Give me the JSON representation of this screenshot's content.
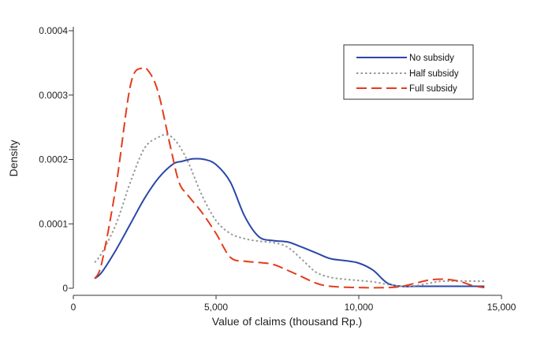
{
  "chart_data": {
    "type": "line",
    "title": "",
    "xlabel": "Value of claims (thousand Rp.)",
    "ylabel": "Density",
    "xlim": [
      0,
      15000
    ],
    "ylim": [
      0,
      0.0004
    ],
    "x_ticks": [
      0,
      5000,
      10000,
      15000
    ],
    "x_tick_labels": [
      "0",
      "5,000",
      "10,000",
      "15,000"
    ],
    "y_ticks": [
      0,
      0.0001,
      0.0002,
      0.0003,
      0.0004
    ],
    "y_tick_labels": [
      "0",
      "0.0001",
      "0.0002",
      "0.0003",
      "0.0004"
    ],
    "grid": false,
    "legend_position": "top-right",
    "series": [
      {
        "name": "No subsidy",
        "color": "#2a47a8",
        "style": "solid",
        "points": [
          [
            750,
            1.5e-05
          ],
          [
            1000,
            2.5e-05
          ],
          [
            1500,
            6e-05
          ],
          [
            2000,
            0.0001
          ],
          [
            2500,
            0.00014
          ],
          [
            3000,
            0.000172
          ],
          [
            3500,
            0.000193
          ],
          [
            3800,
            0.000197
          ],
          [
            4200,
            0.000201
          ],
          [
            4600,
            0.0002
          ],
          [
            5000,
            0.000192
          ],
          [
            5500,
            0.000165
          ],
          [
            6000,
            0.000112
          ],
          [
            6500,
            8e-05
          ],
          [
            7000,
            7.4e-05
          ],
          [
            7500,
            7.2e-05
          ],
          [
            8000,
            6.4e-05
          ],
          [
            8500,
            5.5e-05
          ],
          [
            9000,
            4.6e-05
          ],
          [
            9500,
            4.3e-05
          ],
          [
            10000,
            3.9e-05
          ],
          [
            10500,
            2.8e-05
          ],
          [
            11000,
            8e-06
          ],
          [
            11500,
            3e-06
          ],
          [
            12000,
            3e-06
          ],
          [
            13000,
            3e-06
          ],
          [
            14400,
            3e-06
          ]
        ]
      },
      {
        "name": "Half subsidy",
        "color": "#999999",
        "style": "dotted",
        "points": [
          [
            750,
            4e-05
          ],
          [
            1000,
            5.5e-05
          ],
          [
            1500,
            0.0001
          ],
          [
            2000,
            0.000165
          ],
          [
            2500,
            0.000218
          ],
          [
            3000,
            0.000235
          ],
          [
            3300,
            0.000238
          ],
          [
            3600,
            0.000228
          ],
          [
            4000,
            0.000198
          ],
          [
            4500,
            0.000145
          ],
          [
            5000,
            0.000105
          ],
          [
            5500,
            8.5e-05
          ],
          [
            6000,
            7.7e-05
          ],
          [
            6500,
            7.3e-05
          ],
          [
            7000,
            7.1e-05
          ],
          [
            7500,
            6.4e-05
          ],
          [
            8000,
            4.5e-05
          ],
          [
            8500,
            2.5e-05
          ],
          [
            9000,
            1.7e-05
          ],
          [
            9500,
            1.4e-05
          ],
          [
            10000,
            1.2e-05
          ],
          [
            10500,
            1e-05
          ],
          [
            11000,
            6e-06
          ],
          [
            11500,
            3e-06
          ],
          [
            12000,
            4e-06
          ],
          [
            12500,
            8e-06
          ],
          [
            13000,
            1.1e-05
          ],
          [
            14400,
            1.1e-05
          ]
        ]
      },
      {
        "name": "Full subsidy",
        "color": "#e43c1c",
        "style": "dashed",
        "points": [
          [
            750,
            1.5e-05
          ],
          [
            1000,
            4e-05
          ],
          [
            1500,
            0.00016
          ],
          [
            2000,
            0.000315
          ],
          [
            2400,
            0.000342
          ],
          [
            2700,
            0.000333
          ],
          [
            3000,
            0.0003
          ],
          [
            3400,
            0.00022
          ],
          [
            3700,
            0.000165
          ],
          [
            4000,
            0.000145
          ],
          [
            4500,
            0.000118
          ],
          [
            5000,
            8.5e-05
          ],
          [
            5500,
            4.8e-05
          ],
          [
            6000,
            4.2e-05
          ],
          [
            6500,
            4e-05
          ],
          [
            7000,
            3.7e-05
          ],
          [
            7500,
            2.8e-05
          ],
          [
            8000,
            1.8e-05
          ],
          [
            8500,
            8e-06
          ],
          [
            9000,
            3e-06
          ],
          [
            10000,
            1e-06
          ],
          [
            11000,
            1e-06
          ],
          [
            11500,
            3e-06
          ],
          [
            12000,
            8e-06
          ],
          [
            12500,
            1.3e-05
          ],
          [
            13000,
            1.4e-05
          ],
          [
            13500,
            1.1e-05
          ],
          [
            14000,
            4e-06
          ],
          [
            14400,
            1e-06
          ]
        ]
      }
    ]
  }
}
